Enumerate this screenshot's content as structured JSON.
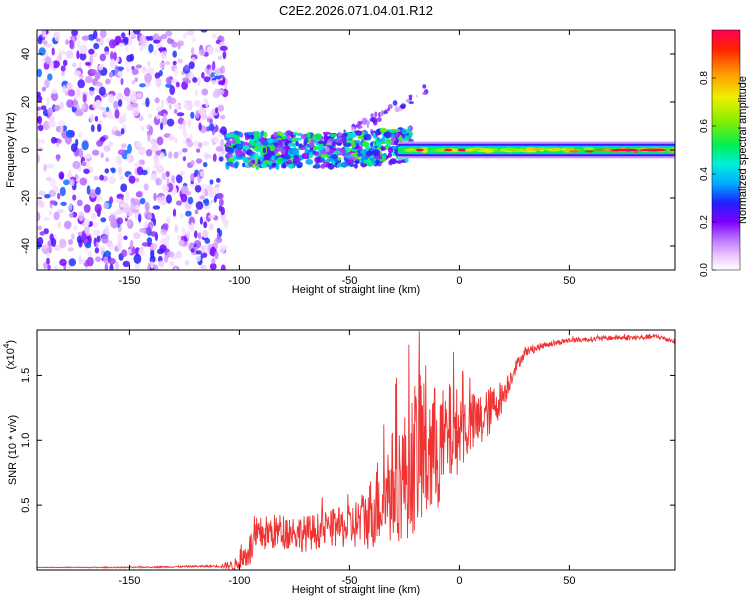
{
  "title": "C2E2.2026.071.04.01.R12",
  "chart_data": [
    {
      "type": "heatmap",
      "id": "spectrogram",
      "xlabel": "Height of straight line (km)",
      "ylabel": "Frequency (Hz)",
      "xlim": [
        -192,
        98
      ],
      "ylim": [
        -50,
        50
      ],
      "xticks": [
        -150,
        -100,
        -50,
        0,
        50
      ],
      "yticks": [
        -40,
        -20,
        0,
        20,
        40
      ],
      "colorbar": {
        "label": "Normalized spectral amplitude",
        "range": [
          0.0,
          1.0
        ],
        "ticks": [
          0.0,
          0.2,
          0.4,
          0.6,
          0.8
        ]
      },
      "features": {
        "noise_region_x": [
          -192,
          -106
        ],
        "signal_start_x": -106,
        "tone_frequency": 0,
        "upward_branch": {
          "from": [
            -60,
            2
          ],
          "to": [
            -15,
            25
          ]
        },
        "tone_peak_amplitude": 1.0
      }
    },
    {
      "type": "line",
      "id": "snr",
      "xlabel": "Height of straight line (km)",
      "ylabel": "SNR (10 * v/v)",
      "multiplier_label": "(x10",
      "multiplier_exponent": "4",
      "xlim": [
        -192,
        98
      ],
      "ylim": [
        0,
        1.85
      ],
      "xticks": [
        -150,
        -100,
        -50,
        0,
        50
      ],
      "yticks": [
        0.5,
        1.0,
        1.5
      ],
      "yticklabels": [
        "0.5",
        "1.0",
        "1.5"
      ],
      "color": "#ee3333",
      "series": [
        {
          "name": "SNR",
          "x": [
            -192,
            -150,
            -110,
            -101,
            -95,
            -90,
            -80,
            -70,
            -60,
            -50,
            -42,
            -36,
            -30,
            -25,
            -20,
            -16,
            -12,
            -8,
            -4,
            0,
            5,
            10,
            15,
            20,
            25,
            30,
            40,
            50,
            60,
            70,
            80,
            90,
            98
          ],
          "y": [
            0.02,
            0.02,
            0.03,
            0.04,
            0.16,
            0.28,
            0.3,
            0.28,
            0.32,
            0.33,
            0.4,
            0.55,
            0.65,
            0.72,
            0.88,
            0.95,
            0.9,
            0.95,
            1.05,
            1.08,
            1.12,
            1.15,
            1.25,
            1.35,
            1.55,
            1.68,
            1.74,
            1.77,
            1.78,
            1.79,
            1.79,
            1.8,
            1.76
          ],
          "spread": [
            0.002,
            0.004,
            0.008,
            0.05,
            0.14,
            0.14,
            0.14,
            0.14,
            0.14,
            0.17,
            0.25,
            0.38,
            0.45,
            0.5,
            0.6,
            0.7,
            0.55,
            0.45,
            0.4,
            0.32,
            0.25,
            0.22,
            0.18,
            0.12,
            0.06,
            0.035,
            0.025,
            0.02,
            0.02,
            0.02,
            0.02,
            0.02,
            0.02
          ]
        }
      ]
    }
  ]
}
